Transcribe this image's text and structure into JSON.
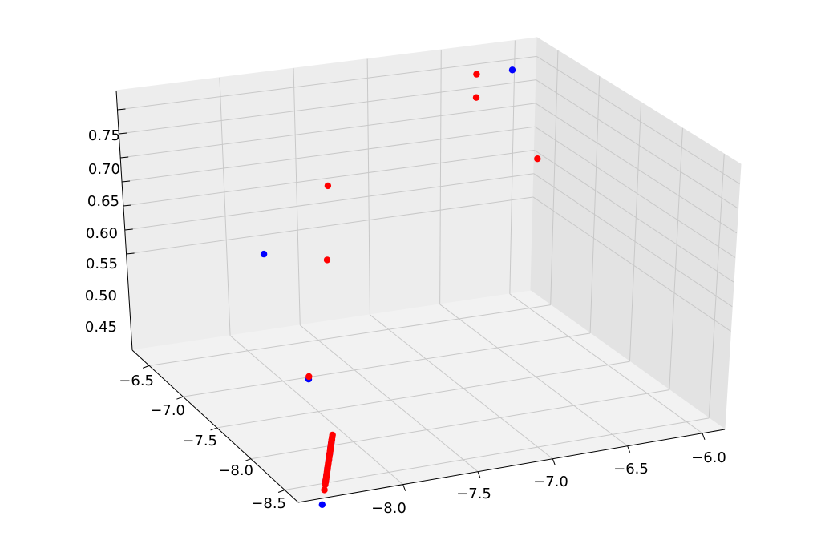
{
  "chart_data": {
    "type": "scatter",
    "projection": "3d",
    "title": "",
    "xlabel": "",
    "ylabel": "",
    "zlabel": "",
    "grid": true,
    "legend": "none",
    "x_ticks": [
      "−8.0",
      "−7.5",
      "−7.0",
      "−6.5",
      "−6.0"
    ],
    "y_ticks": [
      "−6.5",
      "−7.0",
      "−7.5",
      "−8.0",
      "−8.5"
    ],
    "z_ticks": [
      "0.45",
      "0.50",
      "0.55",
      "0.60",
      "0.65",
      "0.70",
      "0.75"
    ],
    "series": [
      {
        "color": "#0000ff",
        "points": [
          {
            "x": -8.4,
            "y": -7.5,
            "z": 0.76
          },
          {
            "x": -6.1,
            "y": -6.4,
            "z": 0.75
          },
          {
            "x": -8.4,
            "y": -8.1,
            "z": 0.56
          },
          {
            "x": -8.4,
            "y": -8.45,
            "z": 0.43
          },
          {
            "x": -8.4,
            "y": -8.45,
            "z": 0.42
          },
          {
            "x": -8.4,
            "y": -8.45,
            "z": 0.41
          },
          {
            "x": -8.4,
            "y": -8.45,
            "z": 0.4
          },
          {
            "x": -8.4,
            "y": -8.45,
            "z": 0.37
          },
          {
            "x": -8.4,
            "y": -8.45,
            "z": 0.34
          },
          {
            "x": -8.4,
            "y": -8.45,
            "z": 0.3
          },
          {
            "x": -8.4,
            "y": -8.45,
            "z": 0.27
          },
          {
            "x": -8.4,
            "y": -8.45,
            "z": 0.25
          },
          {
            "x": -8.4,
            "y": -8.45,
            "z": 0.24
          },
          {
            "x": -8.4,
            "y": -8.45,
            "z": 0.13
          }
        ]
      },
      {
        "color": "#ff0000",
        "points": [
          {
            "x": -7.8,
            "y": -7.2,
            "z": 0.77
          },
          {
            "x": -6.4,
            "y": -6.5,
            "z": 0.77
          },
          {
            "x": -6.4,
            "y": -6.5,
            "z": 0.72
          },
          {
            "x": -6.2,
            "y": -6.9,
            "z": 0.63
          },
          {
            "x": -7.8,
            "y": -7.2,
            "z": 0.58
          },
          {
            "x": -8.4,
            "y": -8.1,
            "z": 0.57
          },
          {
            "x": -8.4,
            "y": -8.45,
            "z": 0.46
          },
          {
            "x": -8.4,
            "y": -8.45,
            "z": 0.45
          },
          {
            "x": -8.4,
            "y": -8.45,
            "z": 0.44
          },
          {
            "x": -8.4,
            "y": -8.45,
            "z": 0.435
          },
          {
            "x": -8.4,
            "y": -8.45,
            "z": 0.425
          },
          {
            "x": -8.4,
            "y": -8.45,
            "z": 0.415
          },
          {
            "x": -8.4,
            "y": -8.45,
            "z": 0.405
          },
          {
            "x": -8.4,
            "y": -8.45,
            "z": 0.395
          },
          {
            "x": -8.4,
            "y": -8.45,
            "z": 0.385
          },
          {
            "x": -8.4,
            "y": -8.45,
            "z": 0.375
          },
          {
            "x": -8.4,
            "y": -8.45,
            "z": 0.365
          },
          {
            "x": -8.4,
            "y": -8.45,
            "z": 0.355
          },
          {
            "x": -8.4,
            "y": -8.45,
            "z": 0.345
          },
          {
            "x": -8.4,
            "y": -8.45,
            "z": 0.335
          },
          {
            "x": -8.4,
            "y": -8.45,
            "z": 0.325
          },
          {
            "x": -8.4,
            "y": -8.45,
            "z": 0.315
          },
          {
            "x": -8.4,
            "y": -8.45,
            "z": 0.305
          },
          {
            "x": -8.4,
            "y": -8.45,
            "z": 0.295
          },
          {
            "x": -8.4,
            "y": -8.45,
            "z": 0.285
          },
          {
            "x": -8.4,
            "y": -8.45,
            "z": 0.275
          },
          {
            "x": -8.4,
            "y": -8.45,
            "z": 0.265
          },
          {
            "x": -8.4,
            "y": -8.45,
            "z": 0.255
          },
          {
            "x": -8.4,
            "y": -8.45,
            "z": 0.245
          },
          {
            "x": -8.4,
            "y": -8.45,
            "z": 0.235
          },
          {
            "x": -8.4,
            "y": -8.45,
            "z": 0.225
          },
          {
            "x": -8.4,
            "y": -8.45,
            "z": 0.2
          }
        ]
      }
    ]
  }
}
